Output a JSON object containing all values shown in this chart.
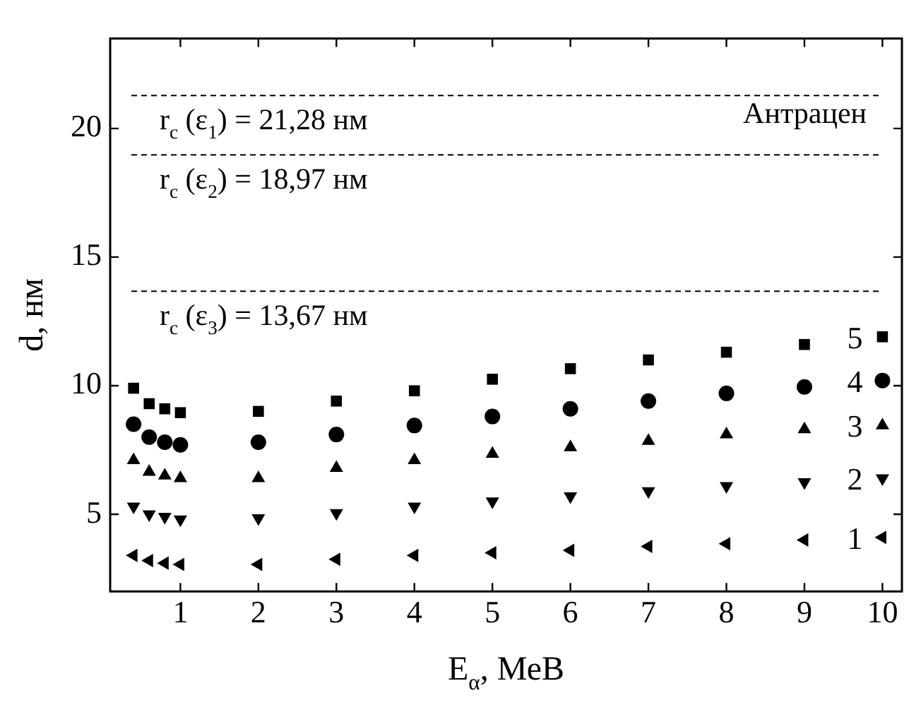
{
  "chart_data": {
    "type": "scatter",
    "xlabel": "E$_{α}$, МеВ",
    "ylabel": "d, нм",
    "xlim": [
      0.1,
      10.25
    ],
    "ylim": [
      2,
      23.5
    ],
    "xticks": [
      1,
      2,
      3,
      4,
      5,
      6,
      7,
      8,
      9,
      10
    ],
    "yticks": [
      5,
      10,
      15,
      20
    ],
    "grid": false,
    "legend": "right",
    "x": [
      0.4,
      0.6,
      0.8,
      1,
      2,
      3,
      4,
      5,
      6,
      7,
      8,
      9,
      10
    ],
    "series": [
      {
        "name": "5",
        "color": "#000000",
        "marker": "square",
        "values": [
          9.9,
          9.3,
          9.1,
          8.95,
          9.0,
          9.4,
          9.8,
          10.25,
          10.66,
          11.0,
          11.3,
          11.6,
          11.9
        ]
      },
      {
        "name": "4",
        "color": "#000000",
        "marker": "circle",
        "values": [
          8.5,
          8.0,
          7.8,
          7.7,
          7.8,
          8.1,
          8.45,
          8.8,
          9.1,
          9.4,
          9.7,
          9.95,
          10.2
        ]
      },
      {
        "name": "3",
        "color": "#000000",
        "marker": "triangle",
        "values": [
          7.1,
          6.65,
          6.5,
          6.4,
          6.4,
          6.8,
          7.1,
          7.35,
          7.6,
          7.85,
          8.1,
          8.3,
          8.45
        ]
      },
      {
        "name": "2",
        "color": "#000000",
        "marker": "triangle-down",
        "values": [
          5.3,
          5.0,
          4.9,
          4.8,
          4.85,
          5.05,
          5.3,
          5.5,
          5.7,
          5.9,
          6.1,
          6.25,
          6.4
        ]
      },
      {
        "name": "1",
        "color": "#000000",
        "marker": "triangle-left",
        "values": [
          3.4,
          3.2,
          3.1,
          3.05,
          3.05,
          3.25,
          3.4,
          3.5,
          3.6,
          3.75,
          3.85,
          4.0,
          4.1
        ]
      }
    ],
    "ref_lines": [
      {
        "axis": "y",
        "value": 21.28,
        "label": "r$_{c}$ (ε$_{1}$) = 21,28 нм",
        "color": "#000000",
        "line_style": "dashed"
      },
      {
        "axis": "y",
        "value": 18.97,
        "label": "r$_{c}$ (ε$_{2}$) = 18,97 нм",
        "color": "#000000",
        "line_style": "dashed"
      },
      {
        "axis": "y",
        "value": 13.67,
        "label": "r$_{c}$ (ε$_{3}$) = 13,67 нм",
        "color": "#000000",
        "line_style": "dashed"
      }
    ],
    "annotations": [
      "Антрацен"
    ]
  }
}
